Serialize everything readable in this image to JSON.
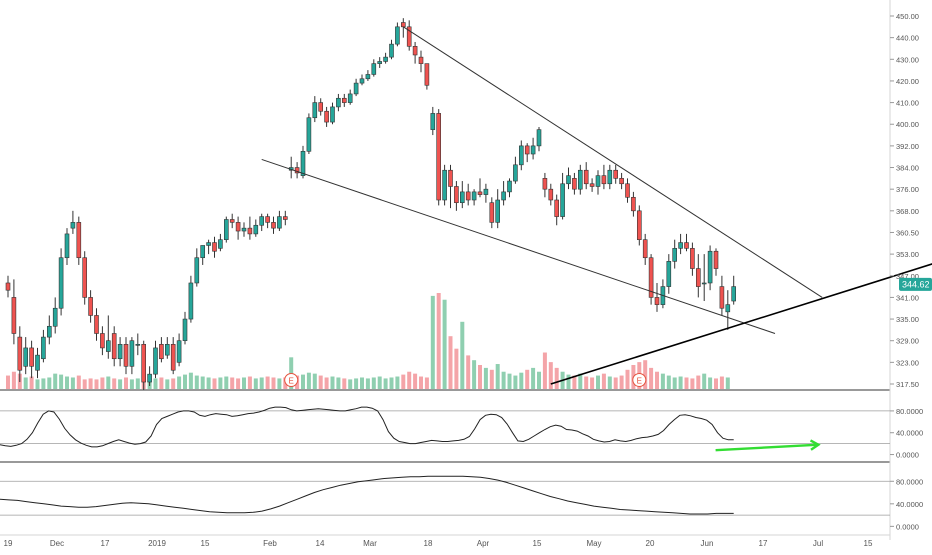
{
  "colors": {
    "up": "#26a69a",
    "down": "#ef5350",
    "up_volume": "#8fcfb0",
    "down_volume": "#f4a4a8",
    "trendline": "#333333",
    "support": "#000000",
    "arrow": "#33dd33",
    "price_badge": "#26a69a",
    "oscillator": "#222222"
  },
  "price_badge": "344.62",
  "earnings_marker": "E",
  "chart_data": [
    {
      "type": "candlestick",
      "title": "",
      "y_axis_ticks": [
        "317.50",
        "323.00",
        "329.00",
        "335.00",
        "341.00",
        "347.00",
        "353.00",
        "360.50",
        "368.00",
        "376.00",
        "384.00",
        "392.00",
        "400.00",
        "410.00",
        "420.00",
        "430.00",
        "440.00",
        "450.00"
      ],
      "x_axis_ticks": [
        "19",
        "Dec",
        "17",
        "2019",
        "15",
        "Feb",
        "14",
        "Mar",
        "18",
        "Apr",
        "15",
        "May",
        "20",
        "Jun",
        "17",
        "Jul",
        "15"
      ],
      "last_price": 344.62,
      "y_range": [
        315,
        452
      ],
      "candles": [
        [
          345,
          343,
          347,
          341
        ],
        [
          341,
          331,
          346,
          328
        ],
        [
          330,
          321,
          333,
          318
        ],
        [
          322,
          327,
          330,
          320
        ],
        [
          327,
          322,
          329,
          319
        ],
        [
          321,
          325,
          327,
          319
        ],
        [
          324,
          330,
          332,
          323
        ],
        [
          330,
          333,
          336,
          328
        ],
        [
          333,
          338,
          341,
          331
        ],
        [
          338,
          352,
          355,
          336
        ],
        [
          352,
          360,
          362,
          350
        ],
        [
          362,
          364,
          368,
          360
        ],
        [
          364,
          352,
          366,
          350
        ],
        [
          352,
          341,
          354,
          339
        ],
        [
          341,
          336,
          343,
          334
        ],
        [
          336,
          331,
          338,
          329
        ],
        [
          331,
          327,
          333,
          325
        ],
        [
          326,
          329,
          336,
          324
        ],
        [
          331,
          324,
          333,
          322
        ],
        [
          324,
          328,
          330,
          322
        ],
        [
          328,
          322,
          330,
          320
        ],
        [
          322,
          329,
          330,
          320
        ],
        [
          328,
          328,
          331,
          325
        ],
        [
          328,
          318,
          329,
          316
        ],
        [
          318,
          320,
          322,
          317
        ],
        [
          320,
          327,
          329,
          319
        ],
        [
          328,
          324,
          330,
          323
        ],
        [
          325,
          328,
          330,
          324
        ],
        [
          328,
          321,
          330,
          320
        ],
        [
          323,
          329,
          331,
          322
        ],
        [
          329,
          335,
          337,
          328
        ],
        [
          335,
          345,
          347,
          334
        ],
        [
          345,
          352,
          355,
          344
        ],
        [
          352,
          356,
          356,
          350
        ],
        [
          356,
          357,
          358,
          353
        ],
        [
          357,
          354,
          359,
          352
        ],
        [
          355,
          358,
          360,
          354
        ],
        [
          358,
          365,
          366,
          357
        ],
        [
          365,
          364,
          367,
          362
        ],
        [
          364,
          361,
          366,
          358
        ],
        [
          361,
          362,
          364,
          359
        ],
        [
          362,
          360,
          366,
          358
        ],
        [
          360,
          363,
          365,
          359
        ],
        [
          363,
          366,
          367,
          361
        ],
        [
          366,
          364,
          367,
          362
        ],
        [
          364,
          362,
          366,
          360
        ],
        [
          362,
          366,
          368,
          361
        ],
        [
          366,
          365,
          368,
          363
        ],
        [
          383,
          384,
          388,
          380
        ],
        [
          384,
          382,
          386,
          380
        ],
        [
          381,
          390,
          392,
          380
        ],
        [
          390,
          403,
          405,
          389
        ],
        [
          403,
          410,
          413,
          401
        ],
        [
          410,
          406,
          412,
          404
        ],
        [
          406,
          401,
          408,
          399
        ],
        [
          401,
          408,
          410,
          400
        ],
        [
          408,
          412,
          414,
          406
        ],
        [
          412,
          410,
          414,
          408
        ],
        [
          410,
          414,
          416,
          409
        ],
        [
          414,
          419,
          421,
          413
        ],
        [
          419,
          421,
          423,
          418
        ],
        [
          421,
          423,
          425,
          420
        ],
        [
          423,
          428,
          430,
          422
        ],
        [
          428,
          429,
          431,
          426
        ],
        [
          429,
          431,
          433,
          428
        ],
        [
          431,
          437,
          439,
          430
        ],
        [
          437,
          445,
          447,
          436
        ],
        [
          447,
          445,
          449,
          440
        ],
        [
          445,
          436,
          448,
          434
        ],
        [
          436,
          432,
          438,
          428
        ],
        [
          431,
          428,
          434,
          424
        ],
        [
          428,
          418,
          428,
          416
        ],
        [
          398,
          405,
          408,
          396
        ],
        [
          405,
          372,
          407,
          370
        ],
        [
          372,
          383,
          385,
          370
        ],
        [
          383,
          377,
          385,
          369
        ],
        [
          377,
          371,
          379,
          368
        ],
        [
          371,
          375,
          379,
          369
        ],
        [
          375,
          372,
          378,
          370
        ],
        [
          372,
          375,
          376,
          370
        ],
        [
          375,
          374,
          380,
          373
        ],
        [
          374,
          376,
          378,
          371
        ],
        [
          371,
          364,
          373,
          362
        ],
        [
          364,
          372,
          376,
          362
        ],
        [
          372,
          375,
          379,
          370
        ],
        [
          375,
          379,
          380,
          373
        ],
        [
          379,
          385,
          388,
          378
        ],
        [
          385,
          392,
          394,
          383
        ],
        [
          392,
          389,
          393,
          386
        ],
        [
          389,
          392,
          395,
          387
        ],
        [
          392,
          398,
          399,
          390
        ],
        [
          380,
          376,
          382,
          373
        ],
        [
          376,
          372,
          378,
          370
        ],
        [
          372,
          366,
          374,
          363
        ],
        [
          366,
          378,
          382,
          365
        ],
        [
          378,
          381,
          384,
          376
        ],
        [
          380,
          376,
          382,
          374
        ],
        [
          376,
          383,
          385,
          374
        ],
        [
          383,
          378,
          386,
          376
        ],
        [
          378,
          377,
          380,
          375
        ],
        [
          377,
          381,
          383,
          374
        ],
        [
          381,
          378,
          385,
          376
        ],
        [
          378,
          383,
          385,
          376
        ],
        [
          383,
          380,
          385,
          378
        ],
        [
          380,
          378,
          382,
          376
        ],
        [
          378,
          373,
          380,
          371
        ],
        [
          373,
          368,
          375,
          366
        ],
        [
          368,
          358,
          370,
          356
        ],
        [
          358,
          352,
          360,
          350
        ],
        [
          352,
          341,
          353,
          339
        ],
        [
          341,
          339,
          345,
          337
        ],
        [
          339,
          344,
          346,
          338
        ],
        [
          344,
          351,
          353,
          342
        ],
        [
          351,
          355,
          358,
          349
        ],
        [
          355,
          357,
          360,
          353
        ],
        [
          357,
          355,
          360,
          354
        ],
        [
          355,
          349,
          357,
          347
        ],
        [
          349,
          344,
          353,
          341
        ],
        [
          345,
          345,
          353,
          340
        ],
        [
          345,
          354,
          356,
          343
        ],
        [
          354,
          349,
          355,
          347
        ],
        [
          344,
          338,
          347,
          336
        ],
        [
          337,
          339,
          343,
          332
        ],
        [
          340,
          344,
          347,
          339
        ]
      ],
      "volume": [
        0.14,
        0.18,
        0.16,
        0.12,
        0.13,
        0.1,
        0.11,
        0.12,
        0.16,
        0.15,
        0.13,
        0.12,
        0.14,
        0.1,
        0.11,
        0.1,
        0.12,
        0.13,
        0.11,
        0.1,
        0.12,
        0.1,
        0.11,
        0.13,
        0.1,
        0.11,
        0.12,
        0.1,
        0.11,
        0.13,
        0.15,
        0.17,
        0.14,
        0.13,
        0.12,
        0.11,
        0.12,
        0.13,
        0.12,
        0.11,
        0.12,
        0.13,
        0.11,
        0.12,
        0.13,
        0.12,
        0.11,
        0.12,
        0.33,
        0.14,
        0.15,
        0.17,
        0.16,
        0.14,
        0.12,
        0.13,
        0.12,
        0.11,
        0.1,
        0.11,
        0.12,
        0.11,
        0.12,
        0.13,
        0.11,
        0.12,
        0.13,
        0.15,
        0.18,
        0.16,
        0.13,
        0.12,
        0.97,
        1.0,
        0.93,
        0.55,
        0.42,
        0.7,
        0.35,
        0.3,
        0.25,
        0.22,
        0.2,
        0.26,
        0.18,
        0.16,
        0.14,
        0.17,
        0.2,
        0.22,
        0.18,
        0.38,
        0.28,
        0.22,
        0.18,
        0.15,
        0.14,
        0.16,
        0.13,
        0.12,
        0.14,
        0.16,
        0.13,
        0.12,
        0.14,
        0.2,
        0.25,
        0.28,
        0.3,
        0.22,
        0.18,
        0.16,
        0.14,
        0.12,
        0.13,
        0.12,
        0.11,
        0.14,
        0.16,
        0.12,
        0.11,
        0.13,
        0.12
      ],
      "earnings_bars": [
        48,
        107
      ],
      "lines": [
        {
          "role": "descending-resistance",
          "points": [
            [
              67,
              445
            ],
            [
              138,
              341
            ]
          ]
        },
        {
          "role": "descending-support",
          "points": [
            [
              43,
              387
            ],
            [
              130,
              331
            ]
          ]
        },
        {
          "role": "rising-support",
          "points": [
            [
              92,
              317.5
            ],
            [
              160,
              352
            ]
          ]
        }
      ]
    },
    {
      "type": "line",
      "title": "",
      "y_axis_ticks": [
        "80.0000",
        "40.0000",
        "0.0000"
      ],
      "ylim": [
        -10,
        100
      ],
      "values": [
        18,
        16,
        15,
        17,
        20,
        28,
        40,
        58,
        74,
        80,
        78,
        65,
        48,
        36,
        27,
        21,
        17,
        14,
        14,
        16,
        20,
        24,
        27,
        24,
        21,
        19,
        20,
        23,
        34,
        55,
        66,
        70,
        74,
        78,
        80,
        80,
        78,
        72,
        70,
        73,
        75,
        74,
        73,
        70,
        71,
        73,
        75,
        76,
        78,
        81,
        85,
        87,
        87,
        86,
        82,
        80,
        81,
        82,
        83,
        84,
        83,
        82,
        81,
        80,
        80,
        82,
        84,
        87,
        87,
        85,
        80,
        64,
        42,
        30,
        24,
        22,
        20,
        20,
        22,
        24,
        26,
        25,
        24,
        24,
        25,
        26,
        28,
        33,
        47,
        64,
        72,
        74,
        73,
        68,
        56,
        40,
        25,
        24,
        28,
        34,
        40,
        46,
        51,
        54,
        52,
        46,
        45,
        43,
        38,
        34,
        28,
        25,
        23,
        24,
        27,
        25,
        24,
        26,
        29,
        31,
        32,
        34,
        37,
        44,
        55,
        64,
        72,
        73,
        71,
        68,
        66,
        63,
        55,
        40,
        30,
        27,
        27
      ],
      "annotation_arrow": {
        "from": [
          124,
          8
        ],
        "to": [
          136,
          18
        ]
      }
    },
    {
      "type": "line",
      "title": "",
      "y_axis_ticks": [
        "80.0000",
        "40.0000",
        "0.0000"
      ],
      "ylim": [
        -10,
        100
      ],
      "values": [
        48,
        47,
        46,
        44,
        42,
        40,
        38,
        36,
        35,
        34,
        34,
        35,
        37,
        39,
        41,
        42,
        41,
        40,
        38,
        36,
        34,
        32,
        30,
        28,
        26,
        25,
        24,
        24,
        24,
        25,
        27,
        31,
        36,
        42,
        48,
        54,
        60,
        65,
        69,
        73,
        76,
        79,
        81,
        83,
        85,
        86,
        87,
        88,
        88,
        89,
        89,
        89,
        89,
        89,
        88,
        87,
        85,
        82,
        78,
        73,
        68,
        63,
        58,
        53,
        49,
        45,
        42,
        39,
        36,
        34,
        32,
        30,
        29,
        28,
        27,
        26,
        25,
        24,
        23,
        22,
        22,
        22,
        23,
        23,
        23
      ]
    }
  ]
}
